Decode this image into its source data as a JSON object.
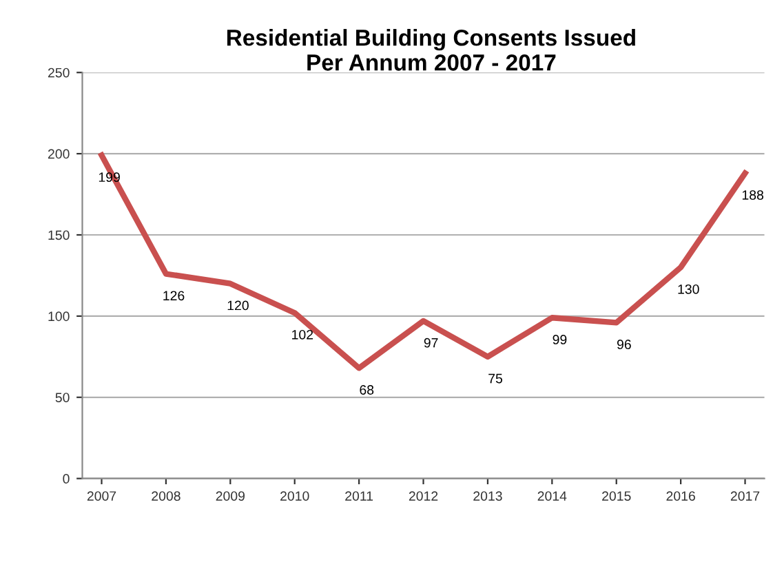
{
  "chart_data": {
    "type": "line",
    "title": "Residential Building Consents Issued\nPer Annum 2007 - 2017",
    "categories": [
      "2007",
      "2008",
      "2009",
      "2010",
      "2011",
      "2012",
      "2013",
      "2014",
      "2015",
      "2016",
      "2017"
    ],
    "series": [
      {
        "color": "#c9504f",
        "values": [
          199,
          126,
          120,
          102,
          68,
          97,
          75,
          99,
          96,
          130,
          188
        ]
      }
    ],
    "ylim": [
      0,
      250
    ],
    "yticks": [
      0,
      50,
      100,
      150,
      200,
      250
    ],
    "grid": "y",
    "data_labels": true,
    "legend": false,
    "marker": "none",
    "line_style": "solid"
  }
}
